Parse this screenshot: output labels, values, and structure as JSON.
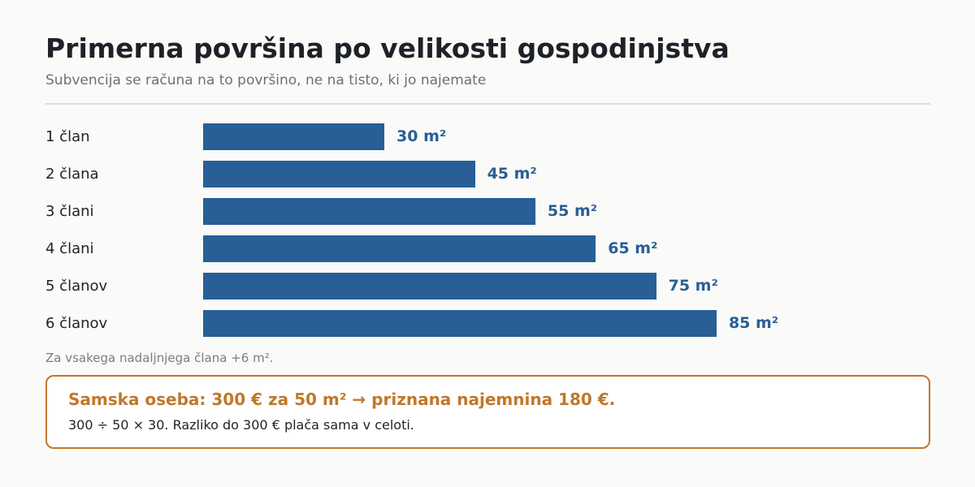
{
  "title": "Primerna površina po velikosti gospodinjstva",
  "subtitle": "Subvencija se računa na to površino, ne na tisto, ki jo najemate",
  "note": "Za vsakega nadaljnjega člana +6 m².",
  "callout": {
    "headline": "Samska oseba: 300 € za 50 m² → priznana najemnina 180 €.",
    "body": "300 ÷ 50 × 30. Razliko do 300 € plača sama v celoti."
  },
  "colors": {
    "bar": "#285f96",
    "accent": "#c0782b"
  },
  "chart_data": {
    "type": "bar",
    "orientation": "horizontal",
    "categories": [
      "1 član",
      "2 člana",
      "3 člani",
      "4 člani",
      "5 članov",
      "6 članov"
    ],
    "values": [
      30,
      45,
      55,
      65,
      75,
      85
    ],
    "value_labels": [
      "30 m²",
      "45 m²",
      "55 m²",
      "65 m²",
      "75 m²",
      "85 m²"
    ],
    "unit": "m²",
    "xlim": [
      0,
      115
    ],
    "grid": false,
    "legend": "none"
  }
}
